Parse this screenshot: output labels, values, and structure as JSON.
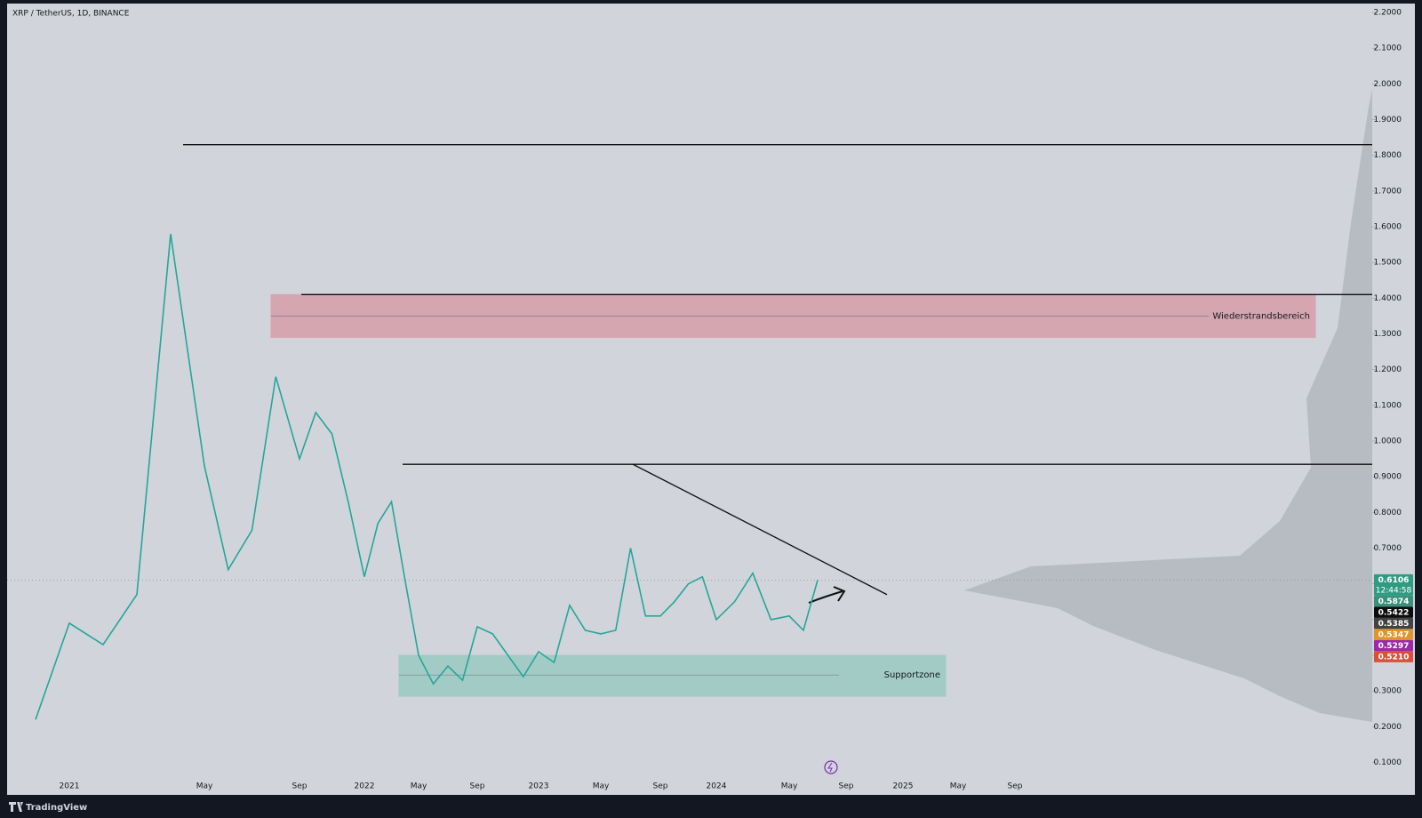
{
  "chart_data": {
    "type": "line",
    "title": "XRP / TetherUS, 1D, BINANCE",
    "x": [
      "2020-12",
      "2021-01",
      "2021-02",
      "2021-03",
      "2021-04",
      "2021-05",
      "2021-06",
      "2021-07",
      "2021-08",
      "2021-09",
      "2021-10",
      "2021-11",
      "2021-12",
      "2022-01",
      "2022-02",
      "2022-03",
      "2022-04",
      "2022-05",
      "2022-06",
      "2022-07",
      "2022-08",
      "2022-09",
      "2022-10",
      "2022-11",
      "2022-12",
      "2023-01",
      "2023-02",
      "2023-03",
      "2023-04",
      "2023-05",
      "2023-06",
      "2023-07",
      "2023-08",
      "2023-09",
      "2023-10",
      "2023-11",
      "2023-12",
      "2024-01",
      "2024-02",
      "2024-03",
      "2024-04",
      "2024-05",
      "2024-06",
      "2024-07"
    ],
    "values": [
      0.22,
      0.49,
      0.43,
      0.57,
      1.58,
      0.93,
      0.64,
      0.75,
      1.18,
      0.95,
      1.08,
      1.02,
      0.83,
      0.62,
      0.77,
      0.83,
      0.61,
      0.4,
      0.32,
      0.37,
      0.33,
      0.48,
      0.46,
      0.4,
      0.34,
      0.41,
      0.38,
      0.54,
      0.47,
      0.46,
      0.47,
      0.7,
      0.51,
      0.51,
      0.55,
      0.6,
      0.62,
      0.5,
      0.55,
      0.63,
      0.5,
      0.51,
      0.47,
      0.6106
    ],
    "color": "#26a69a",
    "ylim": [
      0.054,
      2.225
    ],
    "yticks": [
      {
        "value": 0.1,
        "label": "0.1000"
      },
      {
        "value": 0.2,
        "label": "0.2000"
      },
      {
        "value": 0.3,
        "label": "0.3000"
      },
      {
        "value": 0.4,
        "label": "0.4000"
      },
      {
        "value": 0.5,
        "label": "0.5000"
      },
      {
        "value": 0.6,
        "label": "0.6000"
      },
      {
        "value": 0.7,
        "label": "0.7000"
      },
      {
        "value": 0.8,
        "label": "0.8000"
      },
      {
        "value": 0.9,
        "label": "0.9000"
      },
      {
        "value": 1.0,
        "label": "1.0000"
      },
      {
        "value": 1.1,
        "label": "1.1000"
      },
      {
        "value": 1.2,
        "label": "1.2000"
      },
      {
        "value": 1.3,
        "label": "1.3000"
      },
      {
        "value": 1.4,
        "label": "1.4000"
      },
      {
        "value": 1.5,
        "label": "1.5000"
      },
      {
        "value": 1.6,
        "label": "1.6000"
      },
      {
        "value": 1.7,
        "label": "1.7000"
      },
      {
        "value": 1.8,
        "label": "1.8000"
      },
      {
        "value": 1.9,
        "label": "1.9000"
      },
      {
        "value": 2.0,
        "label": "2.0000"
      },
      {
        "value": 2.1,
        "label": "2.1000"
      },
      {
        "value": 2.2,
        "label": "2.2000"
      }
    ],
    "xticks": [
      {
        "value": "2021-01",
        "label": "2021"
      },
      {
        "value": "2021-05",
        "label": "May"
      },
      {
        "value": "2021-09",
        "label": "Sep"
      },
      {
        "value": "2022-01",
        "label": "2022"
      },
      {
        "value": "2022-05",
        "label": "May"
      },
      {
        "value": "2022-09",
        "label": "Sep"
      },
      {
        "value": "2023-01",
        "label": "2023"
      },
      {
        "value": "2023-05",
        "label": "May"
      },
      {
        "value": "2023-09",
        "label": "Sep"
      },
      {
        "value": "2024-01",
        "label": "2024"
      },
      {
        "value": "2024-05",
        "label": "May"
      },
      {
        "value": "2024-09",
        "label": "Sep"
      },
      {
        "value": "2025-01",
        "label": "2025"
      },
      {
        "value": "2025-05",
        "label": "May"
      },
      {
        "value": "2025-09",
        "label": "Sep"
      }
    ],
    "levels": [
      1.83,
      1.41,
      0.935
    ],
    "trendline": [
      0.935,
      0.57
    ],
    "zones": [
      {
        "label": "Wiederstrandsbereich",
        "low": 1.29,
        "high": 1.41,
        "mid": 1.35,
        "color": "#d9828e"
      },
      {
        "label": "Supportzone",
        "low": 0.285,
        "high": 0.4,
        "mid": 0.345,
        "color": "#7fc4b6"
      }
    ],
    "price_labels": [
      {
        "value": 0.6106,
        "label": "0.6106",
        "color": "#2e9c82",
        "countdown": "12:44:58"
      },
      {
        "value": 0.5874,
        "label": "0.5874",
        "color": "#3b8f7c"
      },
      {
        "value": 0.5422,
        "label": "0.5422",
        "color": "#0c0c0c"
      },
      {
        "value": 0.5385,
        "label": "0.5385",
        "color": "#424242"
      },
      {
        "value": 0.5347,
        "label": "0.5347",
        "color": "#e0962c"
      },
      {
        "value": 0.5297,
        "label": "0.5297",
        "color": "#9a2aa8"
      },
      {
        "value": 0.521,
        "label": "0.5210",
        "color": "#dd4f3c"
      }
    ],
    "brand": "TradingView"
  }
}
